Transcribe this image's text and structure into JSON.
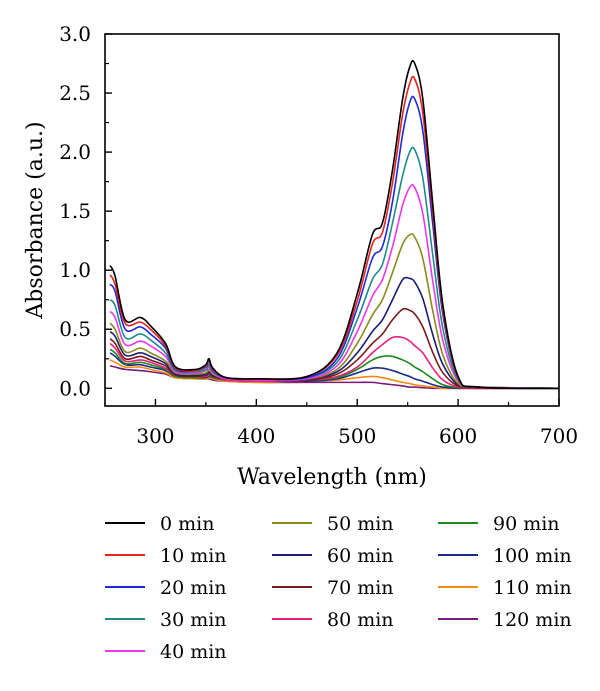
{
  "chart_data": {
    "type": "line",
    "xlabel": "Wavelength (nm)",
    "ylabel": "Absorbance (a.u.)",
    "xlim": [
      250,
      700
    ],
    "ylim": [
      -0.15,
      3.0
    ],
    "xticks": [
      300,
      400,
      500,
      600,
      700
    ],
    "xtick_labels": [
      "300",
      "400",
      "500",
      "600",
      "700"
    ],
    "yticks": [
      0.0,
      0.5,
      1.0,
      1.5,
      2.0,
      2.5,
      3.0
    ],
    "ytick_labels": [
      "0.0",
      "0.5",
      "1.0",
      "1.5",
      "2.0",
      "2.5",
      "3.0"
    ],
    "grid": false,
    "legend_position": "bottom",
    "x": [
      255,
      260,
      270,
      285,
      295,
      310,
      320,
      340,
      350,
      353,
      357,
      370,
      400,
      450,
      480,
      500,
      515,
      525,
      535,
      545,
      552,
      557,
      565,
      575,
      585,
      600,
      620,
      700
    ],
    "series": [
      {
        "name": "0 min",
        "color": "#000000",
        "values": [
          1.04,
          0.95,
          0.58,
          0.6,
          0.53,
          0.38,
          0.18,
          0.16,
          0.2,
          0.25,
          0.17,
          0.09,
          0.08,
          0.1,
          0.3,
          0.8,
          1.3,
          1.4,
          1.85,
          2.45,
          2.72,
          2.75,
          2.45,
          1.55,
          0.7,
          0.1,
          0.01,
          0.0
        ]
      },
      {
        "name": "10 min",
        "color": "#e8201f",
        "values": [
          0.96,
          0.88,
          0.55,
          0.56,
          0.5,
          0.36,
          0.17,
          0.15,
          0.19,
          0.24,
          0.16,
          0.09,
          0.08,
          0.1,
          0.28,
          0.74,
          1.22,
          1.32,
          1.74,
          2.32,
          2.58,
          2.62,
          2.33,
          1.48,
          0.66,
          0.09,
          0.01,
          0.0
        ]
      },
      {
        "name": "20 min",
        "color": "#1c2bd8",
        "values": [
          0.88,
          0.82,
          0.5,
          0.52,
          0.46,
          0.34,
          0.16,
          0.15,
          0.18,
          0.23,
          0.15,
          0.09,
          0.08,
          0.09,
          0.25,
          0.68,
          1.1,
          1.2,
          1.58,
          2.15,
          2.42,
          2.45,
          2.18,
          1.38,
          0.62,
          0.09,
          0.01,
          0.0
        ]
      },
      {
        "name": "30 min",
        "color": "#1f8a8a",
        "values": [
          0.75,
          0.7,
          0.43,
          0.46,
          0.41,
          0.3,
          0.15,
          0.14,
          0.16,
          0.2,
          0.14,
          0.09,
          0.08,
          0.09,
          0.22,
          0.58,
          0.92,
          1.05,
          1.4,
          1.8,
          2.0,
          2.02,
          1.78,
          1.12,
          0.5,
          0.07,
          0.01,
          0.0
        ]
      },
      {
        "name": "40 min",
        "color": "#ef36ef",
        "values": [
          0.65,
          0.6,
          0.37,
          0.4,
          0.36,
          0.27,
          0.14,
          0.13,
          0.15,
          0.18,
          0.13,
          0.08,
          0.07,
          0.08,
          0.19,
          0.48,
          0.78,
          0.92,
          1.2,
          1.55,
          1.7,
          1.7,
          1.48,
          0.9,
          0.4,
          0.06,
          0.01,
          0.0
        ]
      },
      {
        "name": "50 min",
        "color": "#8a8a1a",
        "values": [
          0.55,
          0.5,
          0.31,
          0.34,
          0.3,
          0.23,
          0.13,
          0.12,
          0.13,
          0.16,
          0.12,
          0.08,
          0.07,
          0.08,
          0.16,
          0.38,
          0.62,
          0.75,
          0.98,
          1.22,
          1.3,
          1.28,
          1.1,
          0.65,
          0.28,
          0.04,
          0.01,
          0.0
        ]
      },
      {
        "name": "60 min",
        "color": "#1c1c78",
        "values": [
          0.48,
          0.44,
          0.28,
          0.3,
          0.27,
          0.21,
          0.12,
          0.11,
          0.12,
          0.14,
          0.11,
          0.08,
          0.07,
          0.08,
          0.14,
          0.3,
          0.48,
          0.58,
          0.75,
          0.92,
          0.93,
          0.9,
          0.76,
          0.45,
          0.2,
          0.03,
          0.01,
          0.0
        ]
      },
      {
        "name": "70 min",
        "color": "#7a1a1a",
        "values": [
          0.42,
          0.38,
          0.25,
          0.27,
          0.24,
          0.19,
          0.11,
          0.1,
          0.11,
          0.13,
          0.1,
          0.08,
          0.07,
          0.07,
          0.12,
          0.24,
          0.38,
          0.46,
          0.58,
          0.67,
          0.66,
          0.63,
          0.52,
          0.3,
          0.13,
          0.02,
          0.005,
          0.0
        ]
      },
      {
        "name": "80 min",
        "color": "#e8207a",
        "values": [
          0.38,
          0.34,
          0.23,
          0.24,
          0.22,
          0.17,
          0.11,
          0.1,
          0.1,
          0.12,
          0.1,
          0.07,
          0.06,
          0.07,
          0.1,
          0.18,
          0.3,
          0.37,
          0.43,
          0.43,
          0.4,
          0.36,
          0.3,
          0.17,
          0.07,
          0.01,
          0.0,
          0.0
        ]
      },
      {
        "name": "90 min",
        "color": "#1c8a1c",
        "values": [
          0.33,
          0.3,
          0.21,
          0.22,
          0.2,
          0.16,
          0.1,
          0.09,
          0.1,
          0.11,
          0.09,
          0.07,
          0.06,
          0.07,
          0.09,
          0.16,
          0.24,
          0.27,
          0.27,
          0.24,
          0.21,
          0.18,
          0.14,
          0.08,
          0.03,
          0.005,
          0.0,
          0.0
        ]
      },
      {
        "name": "100 min",
        "color": "#1c2b8a",
        "values": [
          0.3,
          0.27,
          0.2,
          0.2,
          0.18,
          0.15,
          0.1,
          0.09,
          0.09,
          0.1,
          0.09,
          0.07,
          0.06,
          0.06,
          0.08,
          0.13,
          0.17,
          0.17,
          0.15,
          0.12,
          0.1,
          0.08,
          0.06,
          0.03,
          0.01,
          0.0,
          0.0,
          0.0
        ]
      },
      {
        "name": "110 min",
        "color": "#f28c10",
        "values": [
          0.24,
          0.22,
          0.18,
          0.18,
          0.16,
          0.13,
          0.09,
          0.08,
          0.08,
          0.09,
          0.08,
          0.06,
          0.05,
          0.06,
          0.07,
          0.09,
          0.1,
          0.09,
          0.07,
          0.05,
          0.04,
          0.03,
          0.02,
          0.01,
          0.0,
          0.0,
          0.0,
          0.0
        ]
      },
      {
        "name": "120 min",
        "color": "#7a1a7a",
        "values": [
          0.19,
          0.18,
          0.16,
          0.15,
          0.14,
          0.12,
          0.09,
          0.08,
          0.08,
          0.08,
          0.07,
          0.06,
          0.05,
          0.05,
          0.05,
          0.05,
          0.05,
          0.04,
          0.03,
          0.02,
          0.01,
          0.01,
          0.005,
          0.0,
          0.0,
          0.0,
          0.0,
          0.0
        ]
      }
    ]
  }
}
